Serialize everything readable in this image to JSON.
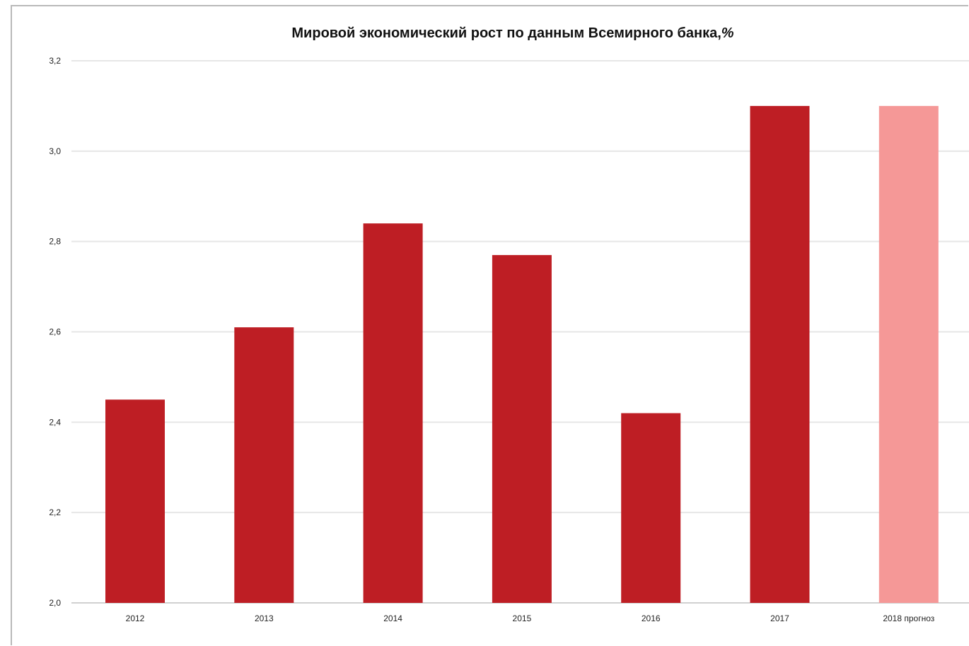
{
  "chart_data": {
    "type": "bar",
    "title": "Мировой экономический рост по данным Всемирного банка,",
    "title_unit": "%",
    "xlabel": "",
    "ylabel": "",
    "categories": [
      "2012",
      "2013",
      "2014",
      "2015",
      "2016",
      "2017",
      "2018 прогноз"
    ],
    "values": [
      2.45,
      2.61,
      2.84,
      2.77,
      2.42,
      3.1,
      3.1
    ],
    "ylim": [
      2.0,
      3.2
    ],
    "yticks": [
      "2,0",
      "2,2",
      "2,4",
      "2,6",
      "2,8",
      "3,0",
      "3,2"
    ],
    "ytick_values": [
      2.0,
      2.2,
      2.4,
      2.6,
      2.8,
      3.0,
      3.2
    ],
    "grid": "horizontal",
    "legend": "none",
    "colors": {
      "actual": "#be1e24",
      "forecast": "#f59897",
      "grid": "#e6e6e6",
      "axis": "#d0d0d0"
    },
    "forecast_index": 6
  }
}
